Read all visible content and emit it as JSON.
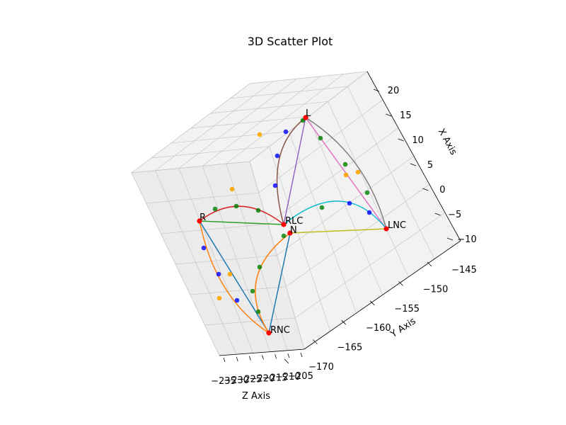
{
  "chart_data": {
    "type": "scatter",
    "projection": "3d",
    "title": "3D Scatter Plot",
    "xlabel": "X Axis",
    "ylabel": "Y Axis",
    "zlabel": "Z Axis",
    "x_ticks": [
      "20",
      "15",
      "10",
      "5",
      "0",
      "−5",
      "−10"
    ],
    "y_ticks": [
      "−145",
      "−150",
      "−155",
      "−160",
      "−165",
      "−170"
    ],
    "z_ticks": [
      "−235",
      "−230",
      "−225",
      "−220",
      "−215",
      "−210",
      "−205"
    ],
    "landmarks": [
      {
        "name": "L"
      },
      {
        "name": "R"
      },
      {
        "name": "RLC"
      },
      {
        "name": "N"
      },
      {
        "name": "LNC"
      },
      {
        "name": "RNC"
      }
    ],
    "colors": {
      "landmark": "#ff0000",
      "blue_points": "#0000ff",
      "green_points": "#008000",
      "orange_points": "#ffa500",
      "lines": [
        "#1f77b4",
        "#ff7f0e",
        "#2ca02c",
        "#d62728",
        "#9467bd",
        "#8c564b",
        "#e377c2",
        "#7f7f7f",
        "#bcbd22",
        "#17becf"
      ]
    }
  }
}
